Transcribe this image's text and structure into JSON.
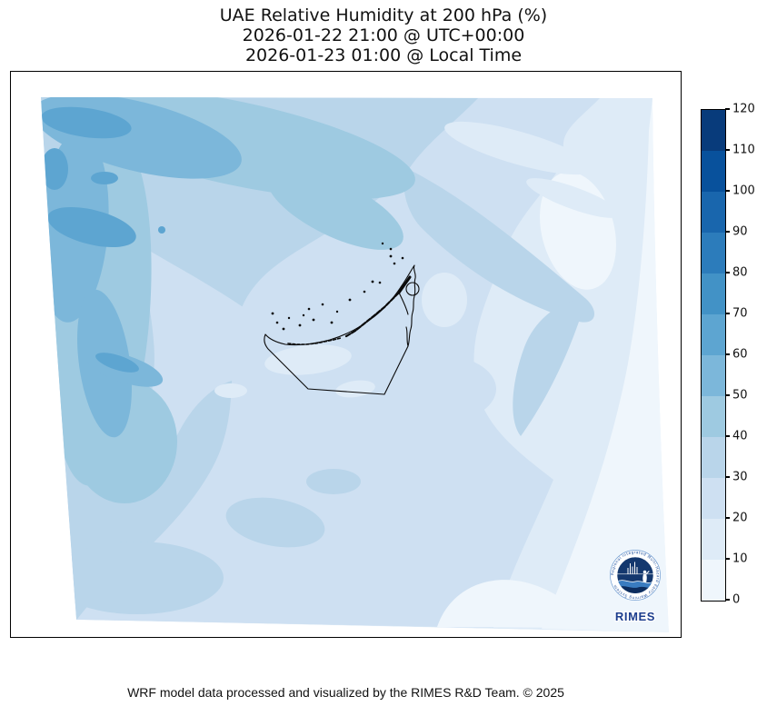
{
  "title": {
    "line1": "UAE Relative Humidity at 200 hPa (%)",
    "line2": "2026-01-22 21:00 @ UTC+00:00",
    "line3": "2026-01-23 01:00 @ Local Time"
  },
  "colorbar": {
    "ticks": [
      0,
      10,
      20,
      30,
      40,
      50,
      60,
      70,
      80,
      90,
      100,
      110,
      120
    ],
    "min": 0,
    "max": 120,
    "levels": [
      {
        "range": "0-10",
        "color": "#eff6fc"
      },
      {
        "range": "10-20",
        "color": "#deebf7"
      },
      {
        "range": "20-30",
        "color": "#cee0f2"
      },
      {
        "range": "30-40",
        "color": "#b9d5ea"
      },
      {
        "range": "40-50",
        "color": "#9ecae1"
      },
      {
        "range": "50-60",
        "color": "#7cb7da"
      },
      {
        "range": "60-70",
        "color": "#5da5d1"
      },
      {
        "range": "70-80",
        "color": "#4292c6"
      },
      {
        "range": "80-90",
        "color": "#2c7cbb"
      },
      {
        "range": "90-100",
        "color": "#1966ad"
      },
      {
        "range": "100-110",
        "color": "#08519c"
      },
      {
        "range": "110-120",
        "color": "#083b7b"
      }
    ]
  },
  "footer": {
    "credit": "WRF model data processed and visualized by the RIMES R&D Team. © 2025"
  },
  "logo": {
    "text": "RIMES",
    "ring_text": "Regional Integrated Multi-Hazard Early Warning System"
  },
  "chart_data": {
    "type": "heatmap",
    "subtype": "filled_contour_map",
    "title": "UAE Relative Humidity at 200 hPa (%)",
    "valid_time_utc": "2026-01-22 21:00 @ UTC+00:00",
    "valid_time_local": "2026-01-23 01:00 @ Local Time",
    "variable": "Relative Humidity",
    "pressure_level": "200 hPa",
    "unit": "%",
    "contour_levels": [
      0,
      10,
      20,
      30,
      40,
      50,
      60,
      70,
      80,
      90,
      100,
      110,
      120
    ],
    "colormap": "Blues (light = low, dark = high)",
    "colorbar_range": [
      0,
      120
    ],
    "legend_position": "right",
    "overlay": "UAE coastline, islands and borders in black",
    "field_summary": [
      {
        "area": "northwest corner of domain",
        "value_range_pct": "50-70"
      },
      {
        "area": "west edge column",
        "value_range_pct": "40-60"
      },
      {
        "area": "upper-center diagonal band",
        "value_range_pct": "30-50"
      },
      {
        "area": "center of domain (over UAE)",
        "value_range_pct": "10-30"
      },
      {
        "area": "east and right edge",
        "value_range_pct": "0-20"
      },
      {
        "area": "bottom-right corner",
        "value_range_pct": "0-10"
      },
      {
        "area": "bottom-left area",
        "value_range_pct": "20-40"
      }
    ]
  }
}
